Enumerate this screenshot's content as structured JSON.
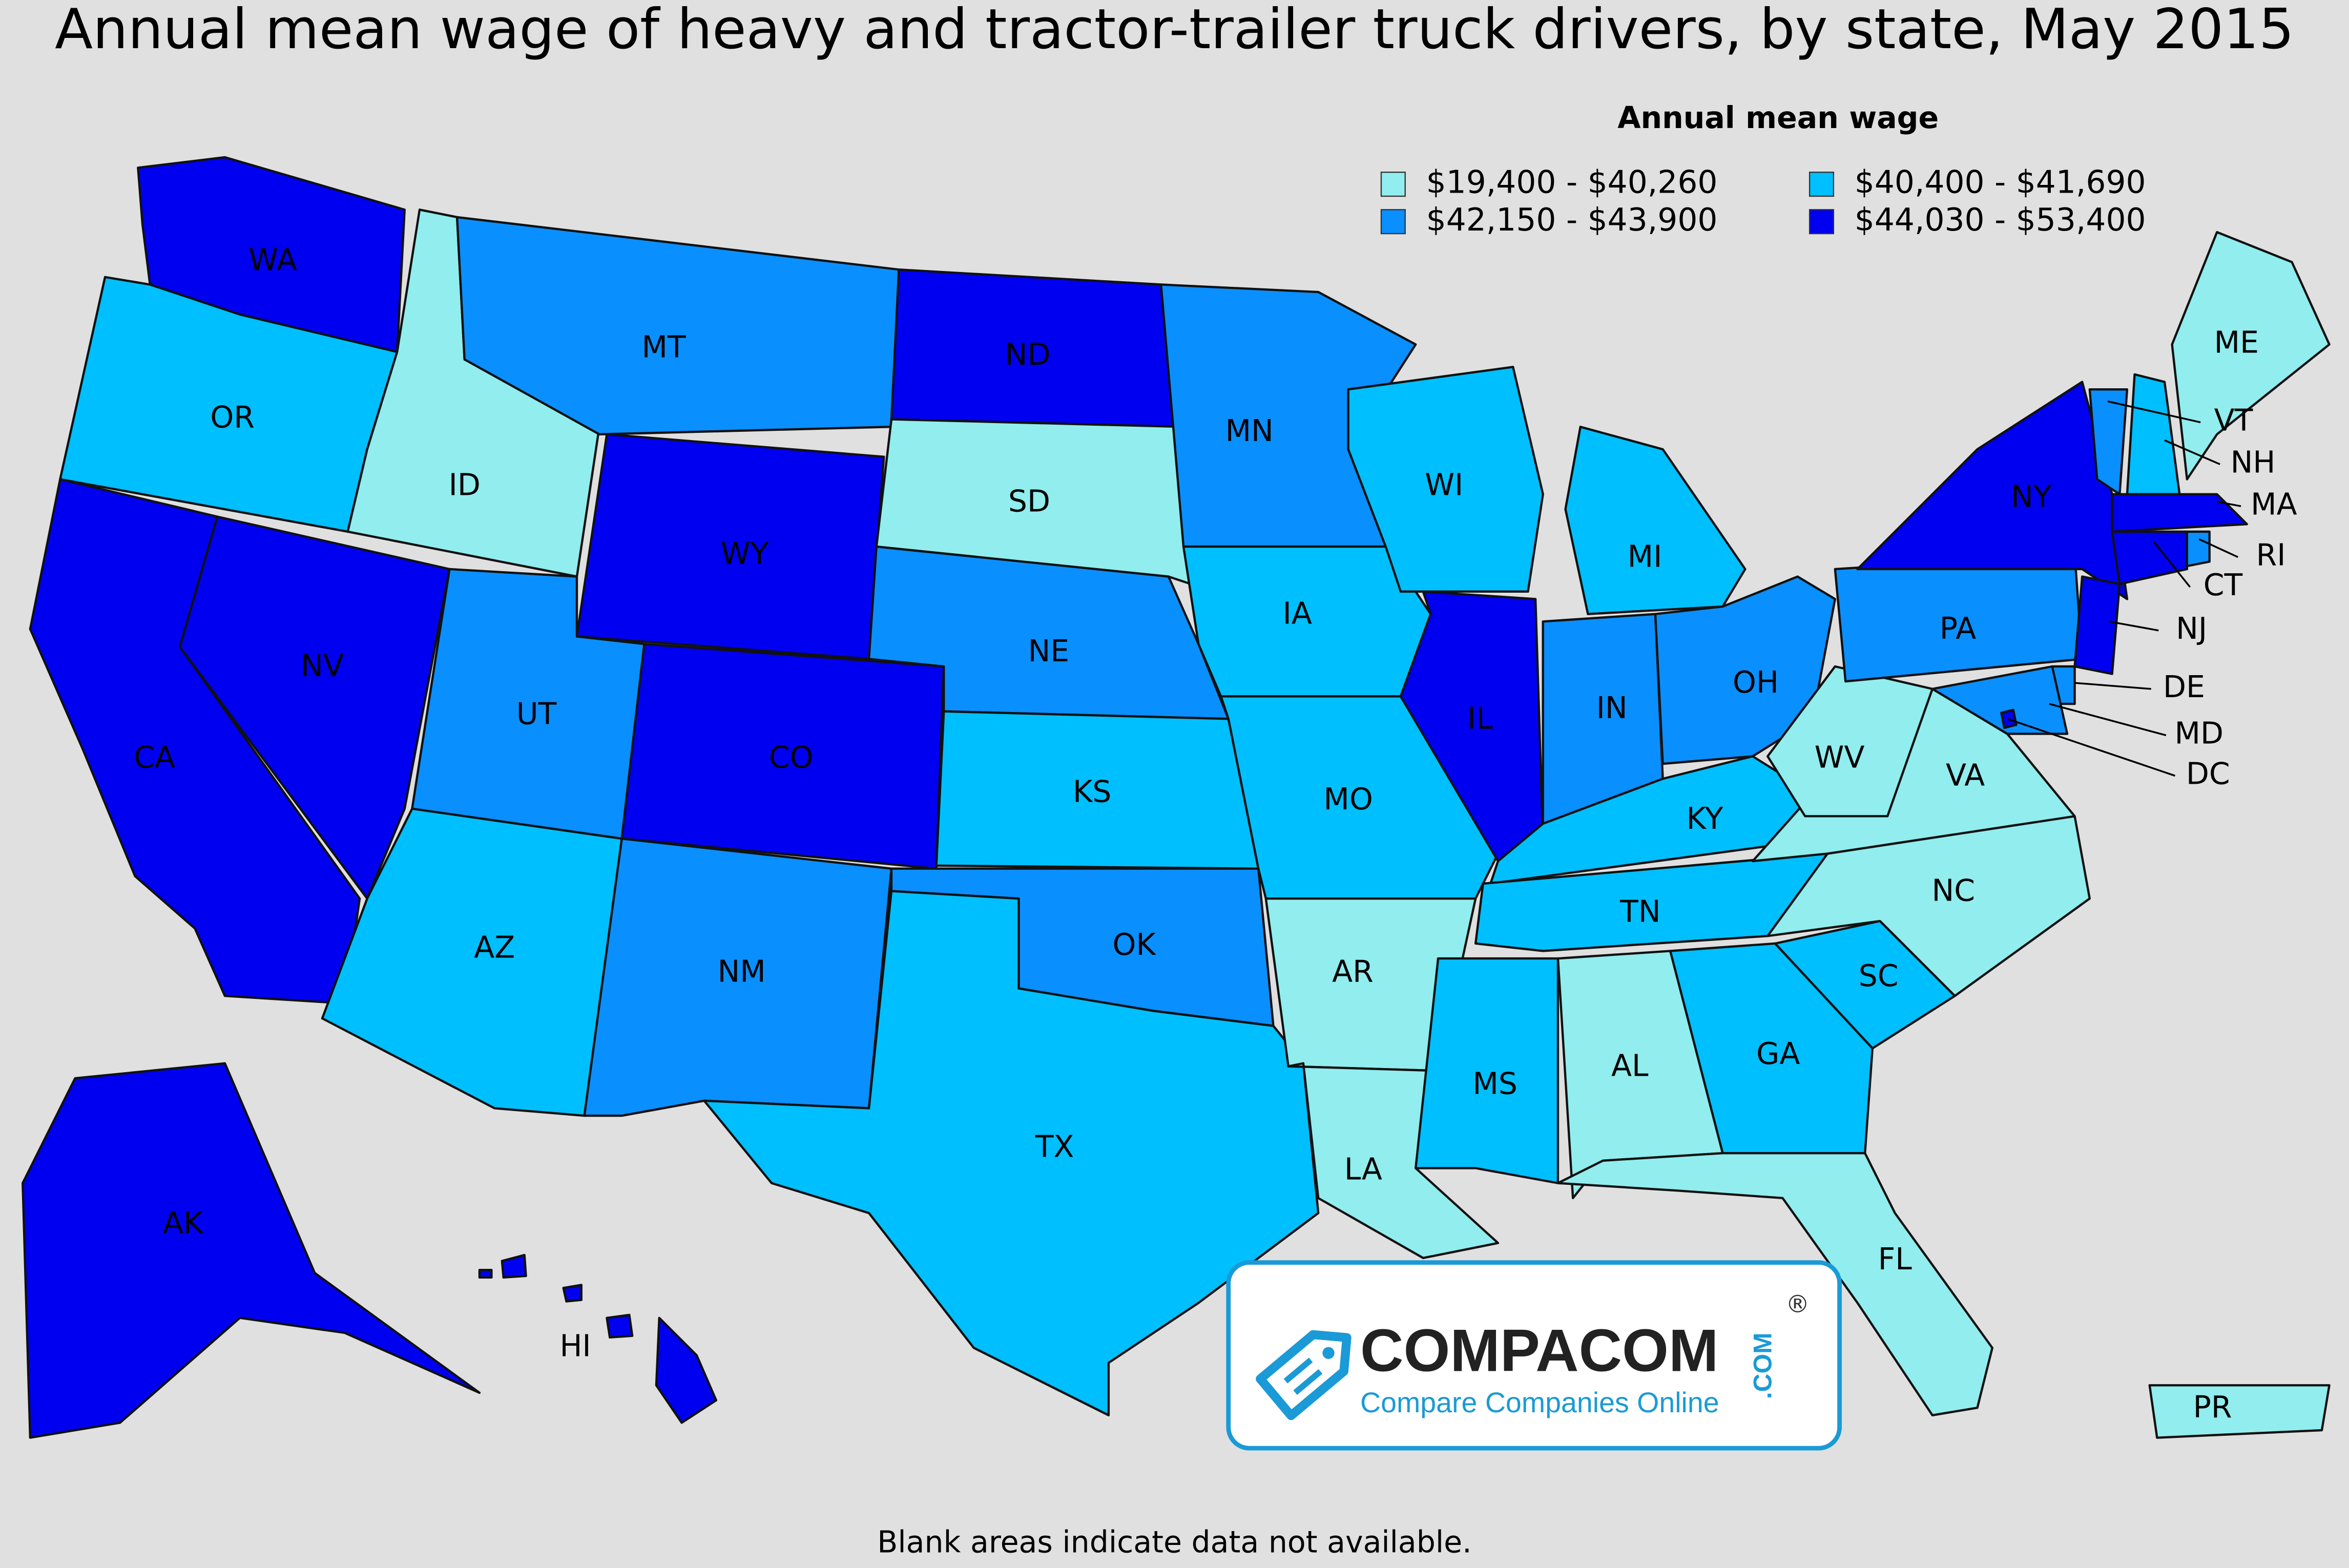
{
  "title": "Annual mean wage of heavy and tractor-trailer truck drivers, by state, May 2015",
  "legend": {
    "title": "Annual mean wage",
    "bins": [
      {
        "label": "$19,400 - $40,260",
        "color": "#91edee"
      },
      {
        "label": "$40,400 - $41,690",
        "color": "#00bfff"
      },
      {
        "label": "$42,150 - $43,900",
        "color": "#0a8fff"
      },
      {
        "label": "$44,030 - $53,400",
        "color": "#0000f0"
      }
    ]
  },
  "states": [
    {
      "abbr": "WA",
      "bin": 3
    },
    {
      "abbr": "OR",
      "bin": 1
    },
    {
      "abbr": "CA",
      "bin": 3
    },
    {
      "abbr": "NV",
      "bin": 3
    },
    {
      "abbr": "ID",
      "bin": 0
    },
    {
      "abbr": "MT",
      "bin": 2
    },
    {
      "abbr": "WY",
      "bin": 3
    },
    {
      "abbr": "UT",
      "bin": 2
    },
    {
      "abbr": "CO",
      "bin": 3
    },
    {
      "abbr": "AZ",
      "bin": 1
    },
    {
      "abbr": "NM",
      "bin": 2
    },
    {
      "abbr": "ND",
      "bin": 3
    },
    {
      "abbr": "SD",
      "bin": 0
    },
    {
      "abbr": "NE",
      "bin": 2
    },
    {
      "abbr": "KS",
      "bin": 1
    },
    {
      "abbr": "OK",
      "bin": 2
    },
    {
      "abbr": "TX",
      "bin": 1
    },
    {
      "abbr": "MN",
      "bin": 2
    },
    {
      "abbr": "IA",
      "bin": 1
    },
    {
      "abbr": "MO",
      "bin": 1
    },
    {
      "abbr": "AR",
      "bin": 0
    },
    {
      "abbr": "LA",
      "bin": 0
    },
    {
      "abbr": "WI",
      "bin": 1
    },
    {
      "abbr": "IL",
      "bin": 3
    },
    {
      "abbr": "MI",
      "bin": 1
    },
    {
      "abbr": "IN",
      "bin": 2
    },
    {
      "abbr": "OH",
      "bin": 2
    },
    {
      "abbr": "KY",
      "bin": 1
    },
    {
      "abbr": "TN",
      "bin": 1
    },
    {
      "abbr": "MS",
      "bin": 1
    },
    {
      "abbr": "AL",
      "bin": 0
    },
    {
      "abbr": "GA",
      "bin": 1
    },
    {
      "abbr": "FL",
      "bin": 0
    },
    {
      "abbr": "SC",
      "bin": 1
    },
    {
      "abbr": "NC",
      "bin": 0
    },
    {
      "abbr": "VA",
      "bin": 0
    },
    {
      "abbr": "WV",
      "bin": 0
    },
    {
      "abbr": "PA",
      "bin": 2
    },
    {
      "abbr": "NY",
      "bin": 3
    },
    {
      "abbr": "VT",
      "bin": 2
    },
    {
      "abbr": "NH",
      "bin": 1
    },
    {
      "abbr": "ME",
      "bin": 0
    },
    {
      "abbr": "MA",
      "bin": 3
    },
    {
      "abbr": "CT",
      "bin": 3
    },
    {
      "abbr": "RI",
      "bin": 2
    },
    {
      "abbr": "NJ",
      "bin": 3
    },
    {
      "abbr": "DE",
      "bin": 2
    },
    {
      "abbr": "MD",
      "bin": 2
    },
    {
      "abbr": "DC",
      "bin": 3
    },
    {
      "abbr": "AK",
      "bin": 3
    },
    {
      "abbr": "HI",
      "bin": 3
    },
    {
      "abbr": "PR",
      "bin": 0
    }
  ],
  "footnote": "Blank areas indicate data not available.",
  "logo": {
    "name": "COMPACOM",
    "suffix": ".COM",
    "tagline": "Compare Companies Online",
    "mark": "®"
  }
}
